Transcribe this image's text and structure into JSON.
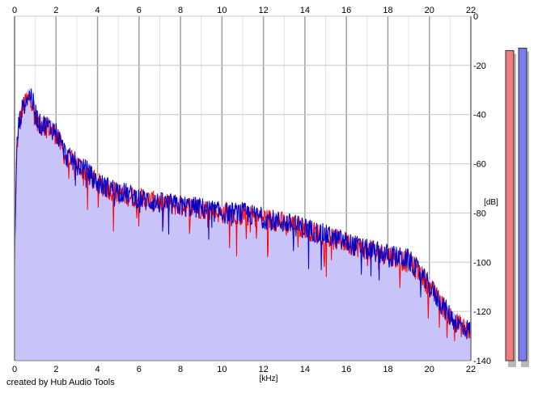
{
  "credit": "created by Hub Audio Tools",
  "chart_data": {
    "type": "area",
    "title": "",
    "xlabel": "[kHz]",
    "ylabel": "[dB]",
    "xlim": [
      0,
      22
    ],
    "ylim": [
      -140,
      0
    ],
    "x_ticks": [
      "0",
      "2",
      "4",
      "6",
      "8",
      "10",
      "12",
      "14",
      "16",
      "18",
      "20",
      "22"
    ],
    "y_ticks": [
      "0",
      "-20",
      "-40",
      "-60",
      "-80",
      "-100",
      "-120",
      "-140"
    ],
    "grid": true,
    "colors": {
      "left": "#ff0000",
      "right": "#0000cc",
      "fill": "#c8c4fa",
      "meter_left": "#ee7c7c",
      "meter_right": "#7c7cee"
    },
    "series": [
      {
        "channel": "left",
        "x": [
          0,
          0.1,
          0.2,
          0.4,
          0.6,
          0.8,
          1.0,
          1.2,
          1.5,
          2.0,
          2.5,
          3.0,
          3.5,
          4.0,
          5.0,
          6.0,
          7.0,
          8.0,
          9.0,
          10.0,
          11.0,
          12.0,
          13.0,
          14.0,
          15.0,
          16.0,
          17.0,
          18.0,
          19.0,
          19.5,
          20.0,
          20.5,
          21.0,
          21.5,
          22.0
        ],
        "y": [
          -100,
          -55,
          -45,
          -38,
          -34,
          -33,
          -40,
          -45,
          -44,
          -48,
          -58,
          -60,
          -64,
          -68,
          -72,
          -74,
          -76,
          -77,
          -78,
          -80,
          -81,
          -82,
          -84,
          -86,
          -90,
          -92,
          -95,
          -97,
          -100,
          -104,
          -110,
          -116,
          -122,
          -126,
          -128
        ]
      },
      {
        "channel": "right",
        "x": [
          0,
          0.1,
          0.2,
          0.4,
          0.6,
          0.8,
          1.0,
          1.2,
          1.5,
          2.0,
          2.5,
          3.0,
          3.5,
          4.0,
          5.0,
          6.0,
          7.0,
          8.0,
          9.0,
          10.0,
          11.0,
          12.0,
          13.0,
          14.0,
          15.0,
          16.0,
          17.0,
          18.0,
          19.0,
          19.5,
          20.0,
          20.5,
          21.0,
          21.5,
          22.0
        ],
        "y": [
          -100,
          -55,
          -44,
          -37,
          -33,
          -32,
          -39,
          -44,
          -44,
          -47,
          -57,
          -60,
          -63,
          -68,
          -71,
          -74,
          -76,
          -77,
          -78,
          -80,
          -80,
          -82,
          -84,
          -86,
          -89,
          -92,
          -95,
          -97,
          -99,
          -104,
          -110,
          -116,
          -122,
          -126,
          -128
        ]
      }
    ],
    "level_meters": [
      {
        "channel": "left",
        "peak_db": -14
      },
      {
        "channel": "right",
        "peak_db": -13
      }
    ]
  }
}
